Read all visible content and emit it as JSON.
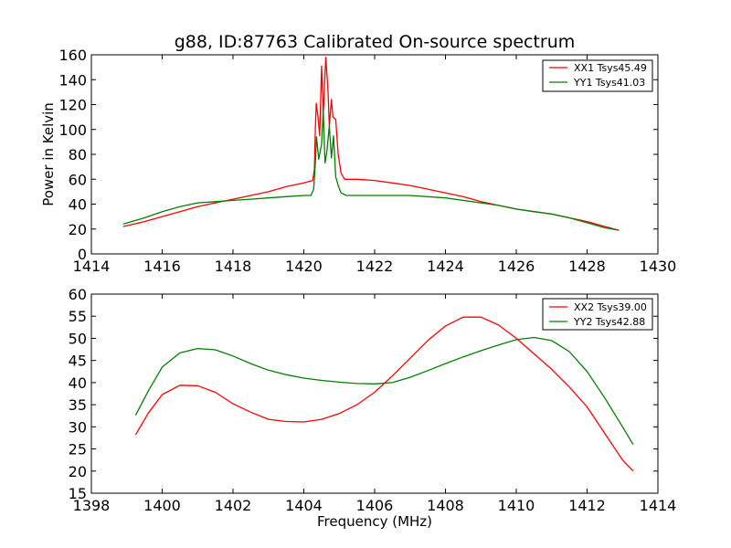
{
  "chart_data": [
    {
      "type": "line",
      "title": "g88, ID:87763 Calibrated On-source spectrum",
      "xlabel": "",
      "ylabel": "Power in Kelvin",
      "xlim": [
        1414,
        1430
      ],
      "ylim": [
        0,
        160
      ],
      "xticks": [
        1414,
        1416,
        1418,
        1420,
        1422,
        1424,
        1426,
        1428,
        1430
      ],
      "yticks": [
        0,
        20,
        40,
        60,
        80,
        100,
        120,
        140,
        160
      ],
      "legend_position": "top-right",
      "series": [
        {
          "name": "XX1 Tsys45.49",
          "color": "#ff0000",
          "points": [
            [
              1414.9,
              22
            ],
            [
              1415.5,
              26
            ],
            [
              1416,
              30
            ],
            [
              1416.5,
              34
            ],
            [
              1417,
              38
            ],
            [
              1417.5,
              41
            ],
            [
              1418,
              44
            ],
            [
              1418.5,
              47
            ],
            [
              1419,
              50
            ],
            [
              1419.5,
              54
            ],
            [
              1420,
              57
            ],
            [
              1420.25,
              59
            ],
            [
              1420.3,
              68
            ],
            [
              1420.32,
              95
            ],
            [
              1420.35,
              121
            ],
            [
              1420.4,
              110
            ],
            [
              1420.45,
              95
            ],
            [
              1420.5,
              151
            ],
            [
              1420.55,
              112
            ],
            [
              1420.62,
              158
            ],
            [
              1420.68,
              132
            ],
            [
              1420.72,
              103
            ],
            [
              1420.78,
              124
            ],
            [
              1420.82,
              110
            ],
            [
              1420.9,
              108
            ],
            [
              1420.97,
              80
            ],
            [
              1421.05,
              65
            ],
            [
              1421.15,
              60
            ],
            [
              1421.5,
              60
            ],
            [
              1422,
              59
            ],
            [
              1422.5,
              57
            ],
            [
              1423,
              55
            ],
            [
              1423.5,
              52
            ],
            [
              1424,
              49
            ],
            [
              1424.5,
              46
            ],
            [
              1425,
              42
            ],
            [
              1425.5,
              39
            ],
            [
              1426,
              36
            ],
            [
              1426.5,
              34
            ],
            [
              1427,
              32
            ],
            [
              1427.5,
              29
            ],
            [
              1428,
              26
            ],
            [
              1428.5,
              22
            ],
            [
              1428.9,
              19
            ]
          ]
        },
        {
          "name": "YY1 Tsys41.03",
          "color": "#008000",
          "points": [
            [
              1414.9,
              24
            ],
            [
              1415.5,
              29
            ],
            [
              1416,
              34
            ],
            [
              1416.5,
              38
            ],
            [
              1417,
              41
            ],
            [
              1417.5,
              42
            ],
            [
              1418,
              43
            ],
            [
              1418.5,
              44
            ],
            [
              1419,
              45
            ],
            [
              1419.5,
              46
            ],
            [
              1420,
              47
            ],
            [
              1420.2,
              47
            ],
            [
              1420.28,
              52
            ],
            [
              1420.32,
              70
            ],
            [
              1420.36,
              94
            ],
            [
              1420.42,
              76
            ],
            [
              1420.5,
              88
            ],
            [
              1420.55,
              115
            ],
            [
              1420.6,
              73
            ],
            [
              1420.65,
              82
            ],
            [
              1420.72,
              103
            ],
            [
              1420.78,
              77
            ],
            [
              1420.84,
              95
            ],
            [
              1420.9,
              62
            ],
            [
              1420.97,
              55
            ],
            [
              1421.05,
              49
            ],
            [
              1421.2,
              47
            ],
            [
              1421.5,
              47
            ],
            [
              1422,
              47
            ],
            [
              1423,
              47
            ],
            [
              1424,
              45
            ],
            [
              1424.5,
              43
            ],
            [
              1425,
              41
            ],
            [
              1425.5,
              39
            ],
            [
              1426,
              36
            ],
            [
              1426.5,
              34
            ],
            [
              1427,
              32
            ],
            [
              1427.5,
              29
            ],
            [
              1428,
              25
            ],
            [
              1428.5,
              21
            ],
            [
              1428.9,
              19
            ]
          ]
        }
      ]
    },
    {
      "type": "line",
      "title": "",
      "xlabel": "Frequency (MHz)",
      "ylabel": "",
      "xlim": [
        1398,
        1414
      ],
      "ylim": [
        15,
        60
      ],
      "xticks": [
        1398,
        1400,
        1402,
        1404,
        1406,
        1408,
        1410,
        1412,
        1414
      ],
      "yticks": [
        15,
        20,
        25,
        30,
        35,
        40,
        45,
        50,
        55,
        60
      ],
      "legend_position": "top-right",
      "series": [
        {
          "name": "XX2 Tsys39.00",
          "color": "#ff0000",
          "points": [
            [
              1399.25,
              28.2
            ],
            [
              1399.6,
              33
            ],
            [
              1400,
              37.3
            ],
            [
              1400.5,
              39.4
            ],
            [
              1401,
              39.3
            ],
            [
              1401.5,
              37.8
            ],
            [
              1402,
              35.2
            ],
            [
              1402.5,
              33.3
            ],
            [
              1403,
              31.7
            ],
            [
              1403.5,
              31.2
            ],
            [
              1404,
              31.1
            ],
            [
              1404.5,
              31.7
            ],
            [
              1405,
              33
            ],
            [
              1405.5,
              35
            ],
            [
              1406,
              37.8
            ],
            [
              1406.5,
              41.5
            ],
            [
              1407,
              45.5
            ],
            [
              1407.5,
              49.5
            ],
            [
              1408,
              52.8
            ],
            [
              1408.5,
              54.8
            ],
            [
              1409,
              54.8
            ],
            [
              1409.5,
              53
            ],
            [
              1410,
              50
            ],
            [
              1410.5,
              46.5
            ],
            [
              1411,
              43
            ],
            [
              1411.5,
              39
            ],
            [
              1412,
              34.5
            ],
            [
              1412.5,
              28.5
            ],
            [
              1413,
              22.5
            ],
            [
              1413.3,
              20
            ]
          ]
        },
        {
          "name": "YY2 Tsys42.88",
          "color": "#008000",
          "points": [
            [
              1399.25,
              32.6
            ],
            [
              1399.6,
              38
            ],
            [
              1400,
              43.5
            ],
            [
              1400.5,
              46.7
            ],
            [
              1401,
              47.7
            ],
            [
              1401.5,
              47.4
            ],
            [
              1402,
              46
            ],
            [
              1402.5,
              44.3
            ],
            [
              1403,
              42.8
            ],
            [
              1403.5,
              41.8
            ],
            [
              1404,
              41
            ],
            [
              1404.5,
              40.5
            ],
            [
              1405,
              40.1
            ],
            [
              1405.5,
              39.8
            ],
            [
              1406,
              39.7
            ],
            [
              1406.5,
              40
            ],
            [
              1407,
              41.2
            ],
            [
              1407.5,
              42.7
            ],
            [
              1408,
              44.3
            ],
            [
              1408.5,
              45.8
            ],
            [
              1409,
              47.2
            ],
            [
              1409.5,
              48.5
            ],
            [
              1410,
              49.7
            ],
            [
              1410.5,
              50.2
            ],
            [
              1411,
              49.5
            ],
            [
              1411.5,
              47
            ],
            [
              1412,
              42.5
            ],
            [
              1412.5,
              36.5
            ],
            [
              1413,
              30
            ],
            [
              1413.3,
              26
            ]
          ]
        }
      ]
    }
  ]
}
